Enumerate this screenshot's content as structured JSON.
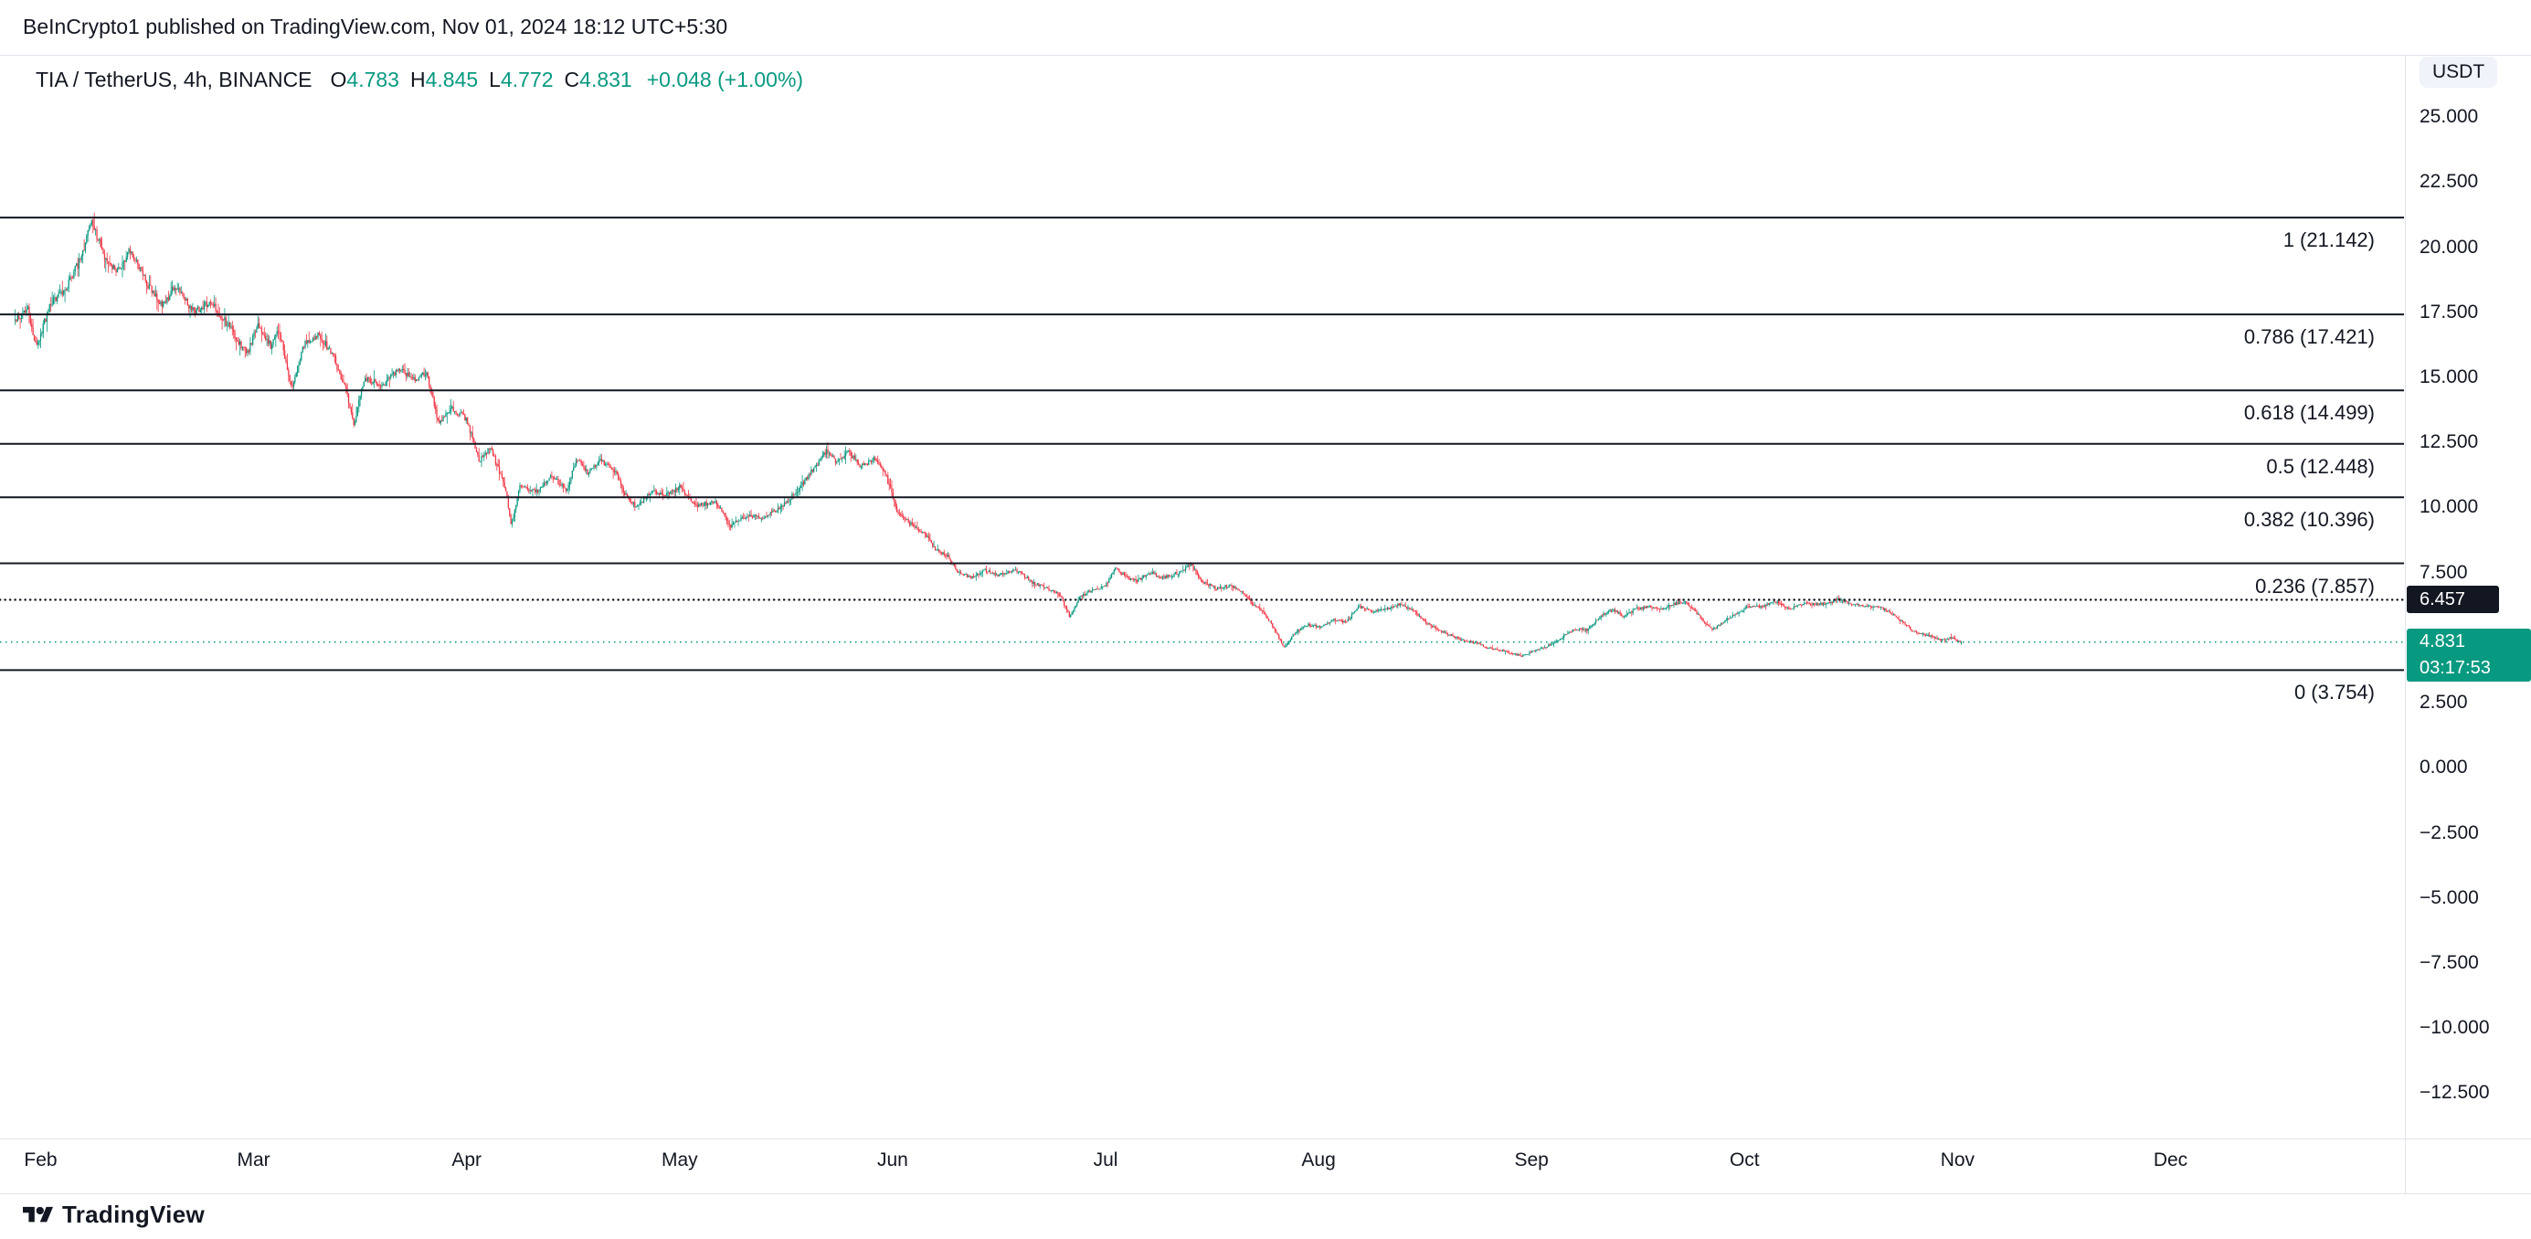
{
  "header": {
    "attribution": "BeInCrypto1 published on TradingView.com, Nov 01, 2024 18:12 UTC+5:30"
  },
  "legend": {
    "symbol": "TIA / TetherUS, 4h, BINANCE",
    "ohlc": [
      {
        "label": "O",
        "value": "4.783"
      },
      {
        "label": "H",
        "value": "4.845"
      },
      {
        "label": "L",
        "value": "4.772"
      },
      {
        "label": "C",
        "value": "4.831"
      }
    ],
    "change": "+0.048 (+1.00%)"
  },
  "price_scale": {
    "currency_badge": "USDT",
    "line_badge": {
      "value": "6.457"
    },
    "last_price_badge": {
      "value": "4.831",
      "countdown": "03:17:53"
    }
  },
  "footer": {
    "brand": "TradingView"
  },
  "colors": {
    "up": "#089981",
    "down": "#F23645",
    "text": "#131722",
    "line_black": "#131722",
    "accent_green": "#089981",
    "border": "#e0e3eb",
    "badge_gray_bg": "#f0f3fa"
  },
  "chart_data": {
    "type": "candlestick",
    "title": "TIA / TetherUS, 4h, BINANCE",
    "pair": "TIA/USDT",
    "timeframe": "4h",
    "exchange": "BINANCE",
    "x_axis": {
      "labels": [
        "Feb",
        "Mar",
        "Apr",
        "May",
        "Jun",
        "Jul",
        "Aug",
        "Sep",
        "Oct",
        "Nov",
        "Dec"
      ]
    },
    "y_axis": {
      "unit": "USDT",
      "ticks": [
        {
          "label": "25.000",
          "value": 25
        },
        {
          "label": "22.500",
          "value": 22.5
        },
        {
          "label": "20.000",
          "value": 20
        },
        {
          "label": "17.500",
          "value": 17.5
        },
        {
          "label": "15.000",
          "value": 15
        },
        {
          "label": "12.500",
          "value": 12.5
        },
        {
          "label": "10.000",
          "value": 10
        },
        {
          "label": "7.500",
          "value": 7.5
        },
        {
          "label": "2.500",
          "value": 2.5
        },
        {
          "label": "0.000",
          "value": 0
        },
        {
          "label": "−2.500",
          "value": -2.5
        },
        {
          "label": "−5.000",
          "value": -5
        },
        {
          "label": "−7.500",
          "value": -7.5
        },
        {
          "label": "−10.000",
          "value": -10
        },
        {
          "label": "−12.500",
          "value": -12.5
        }
      ]
    },
    "fibonacci_retracement": [
      {
        "level": "1",
        "price": 21.142,
        "label": "1 (21.142)"
      },
      {
        "level": "0.786",
        "price": 17.421,
        "label": "0.786 (17.421)"
      },
      {
        "level": "0.618",
        "price": 14.499,
        "label": "0.618 (14.499)"
      },
      {
        "level": "0.5",
        "price": 12.448,
        "label": "0.5 (12.448)"
      },
      {
        "level": "0.382",
        "price": 10.396,
        "label": "0.382 (10.396)"
      },
      {
        "level": "0.236",
        "price": 7.857,
        "label": "0.236 (7.857)"
      },
      {
        "level": "0",
        "price": 3.754,
        "label": "0 (3.754)"
      }
    ],
    "horizontal_line": {
      "price": 6.457,
      "style": "dotted",
      "color": "#131722"
    },
    "last_price_line": {
      "price": 4.831,
      "countdown": "03:17:53",
      "color": "#089981"
    },
    "last_candle": {
      "open": 4.783,
      "high": 4.845,
      "low": 4.772,
      "close": 4.831,
      "change": "+0.048",
      "change_pct": "+1.00%"
    },
    "t_start": -0.12,
    "t_end": 9.02,
    "candle_step": 0.006,
    "price_path_anchors": [
      [
        -0.12,
        17.2
      ],
      [
        -0.06,
        17.6
      ],
      [
        -0.02,
        16.2
      ],
      [
        0.05,
        17.9
      ],
      [
        0.12,
        18.4
      ],
      [
        0.19,
        19.6
      ],
      [
        0.24,
        21.0
      ],
      [
        0.3,
        19.6
      ],
      [
        0.36,
        19.1
      ],
      [
        0.42,
        19.9
      ],
      [
        0.5,
        18.6
      ],
      [
        0.57,
        17.7
      ],
      [
        0.63,
        18.5
      ],
      [
        0.72,
        17.5
      ],
      [
        0.8,
        17.9
      ],
      [
        0.88,
        17.0
      ],
      [
        0.97,
        15.9
      ],
      [
        1.02,
        17.1
      ],
      [
        1.08,
        16.2
      ],
      [
        1.12,
        16.8
      ],
      [
        1.18,
        14.5
      ],
      [
        1.24,
        16.4
      ],
      [
        1.31,
        16.6
      ],
      [
        1.37,
        15.9
      ],
      [
        1.43,
        14.6
      ],
      [
        1.47,
        13.2
      ],
      [
        1.52,
        15.0
      ],
      [
        1.6,
        14.7
      ],
      [
        1.68,
        15.3
      ],
      [
        1.76,
        14.9
      ],
      [
        1.81,
        15.2
      ],
      [
        1.87,
        13.2
      ],
      [
        1.93,
        13.8
      ],
      [
        2.0,
        13.4
      ],
      [
        2.06,
        11.8
      ],
      [
        2.11,
        12.3
      ],
      [
        2.18,
        10.8
      ],
      [
        2.21,
        9.3
      ],
      [
        2.25,
        10.8
      ],
      [
        2.33,
        10.6
      ],
      [
        2.4,
        11.2
      ],
      [
        2.47,
        10.7
      ],
      [
        2.52,
        11.9
      ],
      [
        2.57,
        11.3
      ],
      [
        2.63,
        11.8
      ],
      [
        2.7,
        11.4
      ],
      [
        2.75,
        10.4
      ],
      [
        2.8,
        10.0
      ],
      [
        2.86,
        10.6
      ],
      [
        2.94,
        10.5
      ],
      [
        3.0,
        10.8
      ],
      [
        3.08,
        10.1
      ],
      [
        3.17,
        10.2
      ],
      [
        3.24,
        9.3
      ],
      [
        3.32,
        9.7
      ],
      [
        3.4,
        9.6
      ],
      [
        3.47,
        10.0
      ],
      [
        3.55,
        10.6
      ],
      [
        3.63,
        11.5
      ],
      [
        3.69,
        12.2
      ],
      [
        3.74,
        11.7
      ],
      [
        3.79,
        12.2
      ],
      [
        3.85,
        11.6
      ],
      [
        3.92,
        11.9
      ],
      [
        3.97,
        11.2
      ],
      [
        4.02,
        9.9
      ],
      [
        4.08,
        9.4
      ],
      [
        4.15,
        9.0
      ],
      [
        4.2,
        8.4
      ],
      [
        4.26,
        8.1
      ],
      [
        4.31,
        7.5
      ],
      [
        4.37,
        7.3
      ],
      [
        4.43,
        7.6
      ],
      [
        4.5,
        7.4
      ],
      [
        4.58,
        7.6
      ],
      [
        4.66,
        7.1
      ],
      [
        4.73,
        6.9
      ],
      [
        4.79,
        6.6
      ],
      [
        4.83,
        5.8
      ],
      [
        4.88,
        6.6
      ],
      [
        4.94,
        6.8
      ],
      [
        5.0,
        7.0
      ],
      [
        5.05,
        7.7
      ],
      [
        5.1,
        7.3
      ],
      [
        5.15,
        7.2
      ],
      [
        5.21,
        7.5
      ],
      [
        5.27,
        7.3
      ],
      [
        5.34,
        7.5
      ],
      [
        5.4,
        7.8
      ],
      [
        5.46,
        7.1
      ],
      [
        5.52,
        6.9
      ],
      [
        5.58,
        7.0
      ],
      [
        5.64,
        6.8
      ],
      [
        5.69,
        6.3
      ],
      [
        5.75,
        5.9
      ],
      [
        5.8,
        5.2
      ],
      [
        5.84,
        4.6
      ],
      [
        5.89,
        5.2
      ],
      [
        5.95,
        5.5
      ],
      [
        6.01,
        5.4
      ],
      [
        6.07,
        5.7
      ],
      [
        6.13,
        5.6
      ],
      [
        6.19,
        6.2
      ],
      [
        6.26,
        6.0
      ],
      [
        6.32,
        6.1
      ],
      [
        6.38,
        6.3
      ],
      [
        6.45,
        6.0
      ],
      [
        6.5,
        5.6
      ],
      [
        6.56,
        5.3
      ],
      [
        6.62,
        5.1
      ],
      [
        6.68,
        4.9
      ],
      [
        6.74,
        4.8
      ],
      [
        6.8,
        4.6
      ],
      [
        6.87,
        4.5
      ],
      [
        6.95,
        4.3
      ],
      [
        7.02,
        4.5
      ],
      [
        7.08,
        4.7
      ],
      [
        7.14,
        5.0
      ],
      [
        7.2,
        5.3
      ],
      [
        7.26,
        5.3
      ],
      [
        7.32,
        5.8
      ],
      [
        7.38,
        6.1
      ],
      [
        7.43,
        5.8
      ],
      [
        7.49,
        6.1
      ],
      [
        7.55,
        6.2
      ],
      [
        7.61,
        6.1
      ],
      [
        7.67,
        6.3
      ],
      [
        7.72,
        6.4
      ],
      [
        7.76,
        6.1
      ],
      [
        7.81,
        5.6
      ],
      [
        7.85,
        5.3
      ],
      [
        7.9,
        5.6
      ],
      [
        7.96,
        5.9
      ],
      [
        8.02,
        6.2
      ],
      [
        8.08,
        6.2
      ],
      [
        8.15,
        6.4
      ],
      [
        8.21,
        6.1
      ],
      [
        8.27,
        6.3
      ],
      [
        8.33,
        6.3
      ],
      [
        8.39,
        6.3
      ],
      [
        8.44,
        6.5
      ],
      [
        8.5,
        6.3
      ],
      [
        8.56,
        6.2
      ],
      [
        8.62,
        6.2
      ],
      [
        8.68,
        6.0
      ],
      [
        8.74,
        5.6
      ],
      [
        8.8,
        5.2
      ],
      [
        8.86,
        5.1
      ],
      [
        8.92,
        4.9
      ],
      [
        8.97,
        5.0
      ],
      [
        9.02,
        4.83
      ]
    ]
  }
}
